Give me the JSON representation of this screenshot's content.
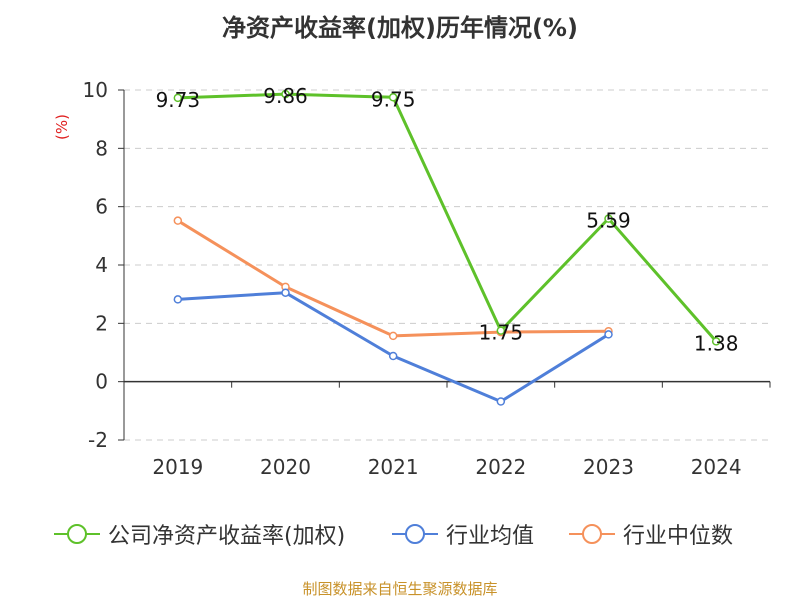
{
  "chart_data": {
    "type": "line",
    "title": "净资产收益率(加权)历年情况(%)",
    "ylabel": "(%)",
    "xlabel": "",
    "categories": [
      "2019",
      "2020",
      "2021",
      "2022",
      "2023",
      "2024"
    ],
    "ylim": [
      -2,
      10
    ],
    "yticks": [
      10,
      8,
      6,
      4,
      2,
      0,
      -2
    ],
    "grid": true,
    "legend_position": "bottom",
    "series": [
      {
        "name": "公司净资产收益率(加权)",
        "color": "#5ec12a",
        "values": [
          9.73,
          9.86,
          9.75,
          1.75,
          5.59,
          1.38
        ],
        "labels": [
          "9.73",
          "9.86",
          "9.75",
          "1.75",
          "5.59",
          "1.38"
        ]
      },
      {
        "name": "行业均值",
        "color": "#4f7fd9",
        "values": [
          2.82,
          3.05,
          0.88,
          -0.68,
          1.62,
          null
        ]
      },
      {
        "name": "行业中位数",
        "color": "#f5915b",
        "values": [
          5.52,
          3.25,
          1.57,
          1.7,
          1.73,
          null
        ]
      }
    ]
  },
  "footer": {
    "source": "制图数据来自恒生聚源数据库"
  }
}
